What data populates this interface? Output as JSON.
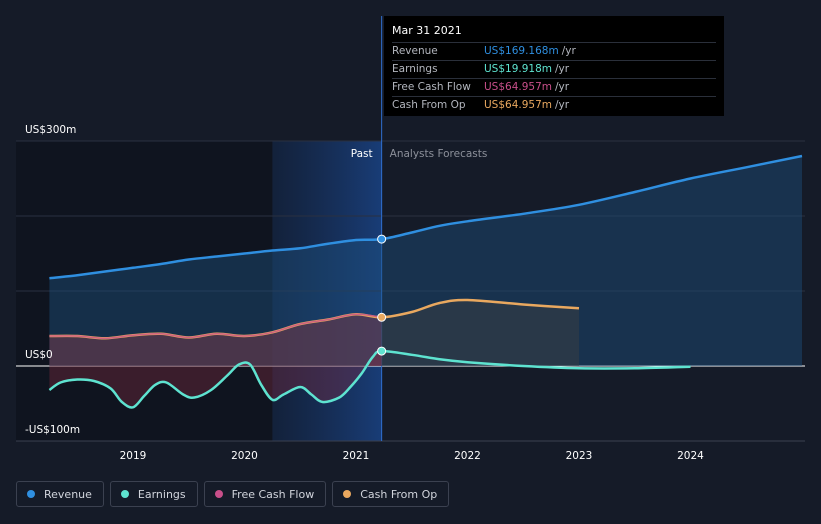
{
  "chart_data": {
    "type": "area",
    "x_ticks": [
      "2019",
      "2020",
      "2021",
      "2022",
      "2023",
      "2024"
    ],
    "y_ticks": [
      "US$300m",
      "US$0",
      "-US$100m"
    ],
    "ylim": [
      -100,
      300
    ],
    "past_label": "Past",
    "forecast_label": "Analysts Forecasts",
    "past_end": 2021.23,
    "highlight_start": 2020.25,
    "series": [
      {
        "name": "Revenue",
        "color": "#2f8fe0",
        "x": [
          2018.25,
          2018.5,
          2018.75,
          2019.0,
          2019.25,
          2019.5,
          2019.75,
          2020.0,
          2020.25,
          2020.5,
          2020.75,
          2021.0,
          2021.23,
          2021.5,
          2021.75,
          2022.0,
          2022.5,
          2023.0,
          2023.5,
          2024.0,
          2024.5,
          2025.0
        ],
        "values": [
          117,
          121,
          126,
          131,
          136,
          142,
          146,
          150,
          154,
          157,
          163,
          168,
          169.2,
          178,
          187,
          193,
          203,
          215,
          232,
          250,
          265,
          280
        ]
      },
      {
        "name": "Earnings",
        "color": "#5ee3d0",
        "x": [
          2018.25,
          2018.35,
          2018.5,
          2018.65,
          2018.8,
          2018.9,
          2019.0,
          2019.1,
          2019.2,
          2019.3,
          2019.45,
          2019.55,
          2019.7,
          2019.85,
          2019.95,
          2020.05,
          2020.15,
          2020.25,
          2020.35,
          2020.5,
          2020.6,
          2020.7,
          2020.85,
          2020.95,
          2021.05,
          2021.15,
          2021.23,
          2021.5,
          2021.75,
          2022.0,
          2022.5,
          2023.0,
          2023.5,
          2024.0
        ],
        "values": [
          -32,
          -22,
          -18,
          -20,
          -30,
          -48,
          -55,
          -40,
          -25,
          -22,
          -38,
          -42,
          -32,
          -12,
          2,
          2,
          -25,
          -45,
          -38,
          -28,
          -38,
          -48,
          -42,
          -28,
          -10,
          12,
          19.9,
          15,
          9,
          5,
          0,
          -3,
          -3,
          -1
        ]
      },
      {
        "name": "Free Cash Flow",
        "color": "#c84f8a",
        "x": [
          2018.25,
          2018.5,
          2018.75,
          2019.0,
          2019.25,
          2019.5,
          2019.75,
          2020.0,
          2020.25,
          2020.5,
          2020.75,
          2021.0,
          2021.23
        ],
        "values": [
          40,
          40,
          37,
          41,
          43,
          38,
          43,
          40,
          45,
          56,
          62,
          69,
          64.957
        ]
      },
      {
        "name": "Cash From Op",
        "color": "#e9a85f",
        "x": [
          2018.25,
          2018.5,
          2018.75,
          2019.0,
          2019.25,
          2019.5,
          2019.75,
          2020.0,
          2020.25,
          2020.5,
          2020.75,
          2021.0,
          2021.23,
          2021.5,
          2021.75,
          2022.0,
          2022.5,
          2023.0
        ],
        "values": [
          40,
          40,
          37,
          41,
          43,
          38,
          43,
          40,
          45,
          56,
          62,
          69,
          64.957,
          72,
          84,
          88,
          82,
          77
        ]
      }
    ]
  },
  "tooltip": {
    "date": "Mar 31 2021",
    "rows": [
      {
        "label": "Revenue",
        "value": "US$169.168m",
        "unit": "/yr",
        "color": "#2f8fe0"
      },
      {
        "label": "Earnings",
        "value": "US$19.918m",
        "unit": "/yr",
        "color": "#5ee3d0"
      },
      {
        "label": "Free Cash Flow",
        "value": "US$64.957m",
        "unit": "/yr",
        "color": "#c84f8a"
      },
      {
        "label": "Cash From Op",
        "value": "US$64.957m",
        "unit": "/yr",
        "color": "#e9a85f"
      }
    ]
  },
  "legend": [
    {
      "label": "Revenue",
      "color": "#2f8fe0"
    },
    {
      "label": "Earnings",
      "color": "#5ee3d0"
    },
    {
      "label": "Free Cash Flow",
      "color": "#c84f8a"
    },
    {
      "label": "Cash From Op",
      "color": "#e9a85f"
    }
  ]
}
